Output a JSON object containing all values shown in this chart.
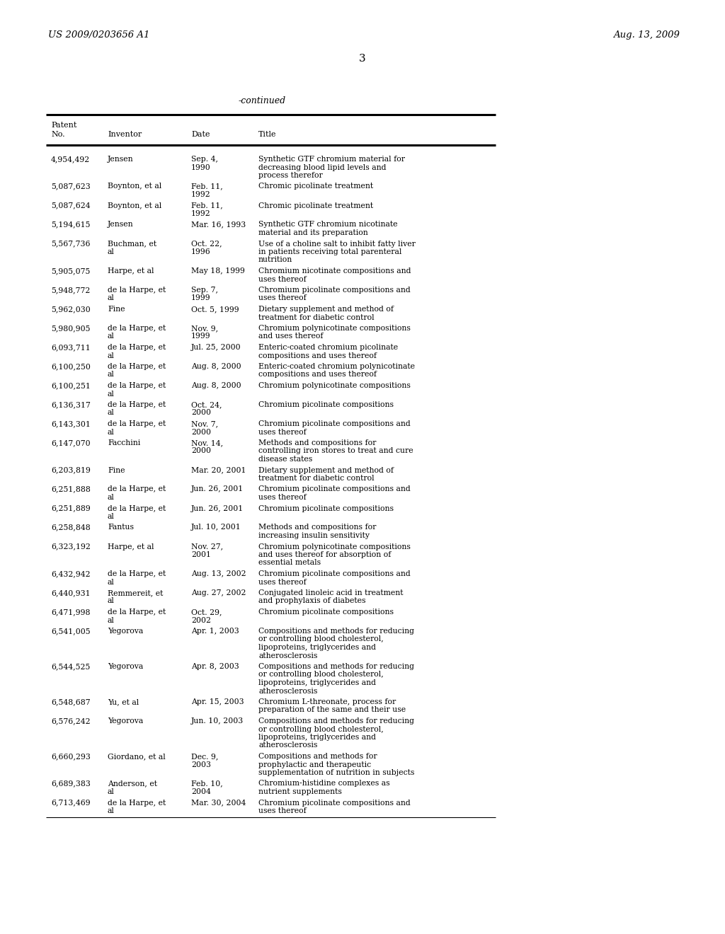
{
  "header_left": "US 2009/0203656 A1",
  "header_right": "Aug. 13, 2009",
  "page_number": "3",
  "continued_label": "-continued",
  "background_color": "#ffffff",
  "text_color": "#000000",
  "table_entries": [
    [
      "4,954,492",
      "Jensen",
      "Sep. 4,\n1990",
      "Synthetic GTF chromium material for\ndecreasing blood lipid levels and\nprocess therefor"
    ],
    [
      "5,087,623",
      "Boynton, et al",
      "Feb. 11,\n1992",
      "Chromic picolinate treatment"
    ],
    [
      "5,087,624",
      "Boynton, et al",
      "Feb. 11,\n1992",
      "Chromic picolinate treatment"
    ],
    [
      "5,194,615",
      "Jensen",
      "Mar. 16, 1993",
      "Synthetic GTF chromium nicotinate\nmaterial and its preparation"
    ],
    [
      "5,567,736",
      "Buchman, et\nal",
      "Oct. 22,\n1996",
      "Use of a choline salt to inhibit fatty liver\nin patients receiving total parenteral\nnutrition"
    ],
    [
      "5,905,075",
      "Harpe, et al",
      "May 18, 1999",
      "Chromium nicotinate compositions and\nuses thereof"
    ],
    [
      "5,948,772",
      "de la Harpe, et\nal",
      "Sep. 7,\n1999",
      "Chromium picolinate compositions and\nuses thereof"
    ],
    [
      "5,962,030",
      "Fine",
      "Oct. 5, 1999",
      "Dietary supplement and method of\ntreatment for diabetic control"
    ],
    [
      "5,980,905",
      "de la Harpe, et\nal",
      "Nov. 9,\n1999",
      "Chromium polynicotinate compositions\nand uses thereof"
    ],
    [
      "6,093,711",
      "de la Harpe, et\nal",
      "Jul. 25, 2000",
      "Enteric-coated chromium picolinate\ncompositions and uses thereof"
    ],
    [
      "6,100,250",
      "de la Harpe, et\nal",
      "Aug. 8, 2000",
      "Enteric-coated chromium polynicotinate\ncompositions and uses thereof"
    ],
    [
      "6,100,251",
      "de la Harpe, et\nal",
      "Aug. 8, 2000",
      "Chromium polynicotinate compositions"
    ],
    [
      "6,136,317",
      "de la Harpe, et\nal",
      "Oct. 24,\n2000",
      "Chromium picolinate compositions"
    ],
    [
      "6,143,301",
      "de la Harpe, et\nal",
      "Nov. 7,\n2000",
      "Chromium picolinate compositions and\nuses thereof"
    ],
    [
      "6,147,070",
      "Facchini",
      "Nov. 14,\n2000",
      "Methods and compositions for\ncontrolling iron stores to treat and cure\ndisease states"
    ],
    [
      "6,203,819",
      "Fine",
      "Mar. 20, 2001",
      "Dietary supplement and method of\ntreatment for diabetic control"
    ],
    [
      "6,251,888",
      "de la Harpe, et\nal",
      "Jun. 26, 2001",
      "Chromium picolinate compositions and\nuses thereof"
    ],
    [
      "6,251,889",
      "de la Harpe, et\nal",
      "Jun. 26, 2001",
      "Chromium picolinate compositions"
    ],
    [
      "6,258,848",
      "Fantus",
      "Jul. 10, 2001",
      "Methods and compositions for\nincreasing insulin sensitivity"
    ],
    [
      "6,323,192",
      "Harpe, et al",
      "Nov. 27,\n2001",
      "Chromium polynicotinate compositions\nand uses thereof for absorption of\nessential metals"
    ],
    [
      "6,432,942",
      "de la Harpe, et\nal",
      "Aug. 13, 2002",
      "Chromium picolinate compositions and\nuses thereof"
    ],
    [
      "6,440,931",
      "Remmereit, et\nal",
      "Aug. 27, 2002",
      "Conjugated linoleic acid in treatment\nand prophylaxis of diabetes"
    ],
    [
      "6,471,998",
      "de la Harpe, et\nal",
      "Oct. 29,\n2002",
      "Chromium picolinate compositions"
    ],
    [
      "6,541,005",
      "Yegorova",
      "Apr. 1, 2003",
      "Compositions and methods for reducing\nor controlling blood cholesterol,\nlipoproteins, triglycerides and\natherosclerosis"
    ],
    [
      "6,544,525",
      "Yegorova",
      "Apr. 8, 2003",
      "Compositions and methods for reducing\nor controlling blood cholesterol,\nlipoproteins, triglycerides and\natherosclerosis"
    ],
    [
      "6,548,687",
      "Yu, et al",
      "Apr. 15, 2003",
      "Chromium L-threonate, process for\npreparation of the same and their use"
    ],
    [
      "6,576,242",
      "Yegorova",
      "Jun. 10, 2003",
      "Compositions and methods for reducing\nor controlling blood cholesterol,\nlipoproteins, triglycerides and\natherosclerosis"
    ],
    [
      "6,660,293",
      "Giordano, et al",
      "Dec. 9,\n2003",
      "Compositions and methods for\nprophylactic and therapeutic\nsupplementation of nutrition in subjects"
    ],
    [
      "6,689,383",
      "Anderson, et\nal",
      "Feb. 10,\n2004",
      "Chromium-histidine complexes as\nnutrient supplements"
    ],
    [
      "6,713,469",
      "de la Harpe, et\nal",
      "Mar. 30, 2004",
      "Chromium picolinate compositions and\nuses thereof"
    ]
  ]
}
